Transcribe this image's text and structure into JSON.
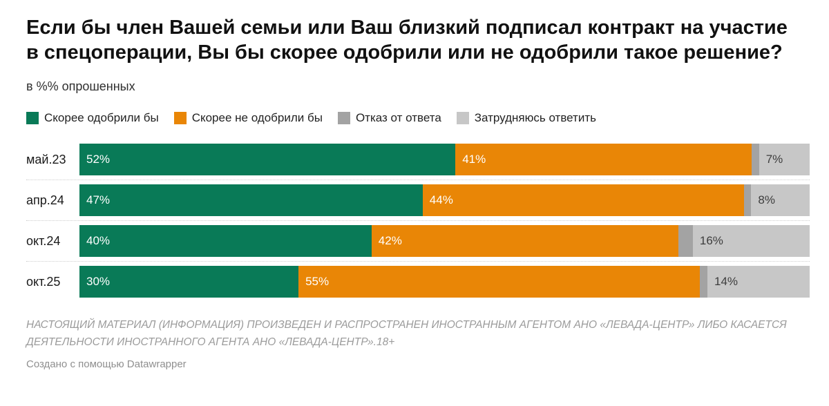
{
  "title": "Если бы член Вашей семьи или Ваш близкий подписал контракт на участие в спецоперации, Вы бы скорее одобрили или не одобрили такое решение?",
  "subtitle": "в %% опрошенных",
  "colors": {
    "approve_green": "#097a57",
    "disapprove_orange": "#e98606",
    "refuse_gray": "#a3a3a3",
    "undecided_lightgray": "#c7c7c7",
    "label_on_dark": "#ffffff",
    "label_on_light": "#3d3d3d",
    "separator": "#cccccc"
  },
  "chart_data": {
    "type": "bar",
    "stacked": true,
    "orientation": "horizontal",
    "value_format": "percent",
    "xlim": [
      0,
      100
    ],
    "grid": false,
    "legend_position": "top",
    "categories": [
      "май.23",
      "апр.24",
      "окт.24",
      "окт.25"
    ],
    "series": [
      {
        "name": "Скорее одобрили бы",
        "color": "#097a57",
        "label_color": "#ffffff",
        "values": [
          52,
          47,
          40,
          30
        ],
        "labels": [
          "52%",
          "47%",
          "40%",
          "30%"
        ]
      },
      {
        "name": "Скорее не одобрили бы",
        "color": "#e98606",
        "label_color": "#ffffff",
        "values": [
          41,
          44,
          42,
          55
        ],
        "labels": [
          "41%",
          "44%",
          "42%",
          "55%"
        ]
      },
      {
        "name": "Отказ от ответа",
        "color": "#a3a3a3",
        "label_color": "",
        "values": [
          1,
          1,
          2,
          1
        ],
        "labels": [
          "",
          "",
          "",
          ""
        ]
      },
      {
        "name": "Затрудняюсь ответить",
        "color": "#c7c7c7",
        "label_color": "#3d3d3d",
        "values": [
          7,
          8,
          16,
          14
        ],
        "labels": [
          "7%",
          "8%",
          "16%",
          "14%"
        ]
      }
    ]
  },
  "footer": {
    "disclaimer": "НАСТОЯЩИЙ МАТЕРИАЛ (ИНФОРМАЦИЯ) ПРОИЗВЕДЕН И РАСПРОСТРАНЕН ИНОСТРАННЫМ АГЕНТОМ АНО «ЛЕВАДА-ЦЕНТР» ЛИБО КАСАЕТСЯ ДЕЯТЕЛЬНОСТИ ИНОСТРАННОГО АГЕНТА АНО «ЛЕВАДА-ЦЕНТР».18+",
    "credit": "Создано с помощью Datawrapper"
  }
}
